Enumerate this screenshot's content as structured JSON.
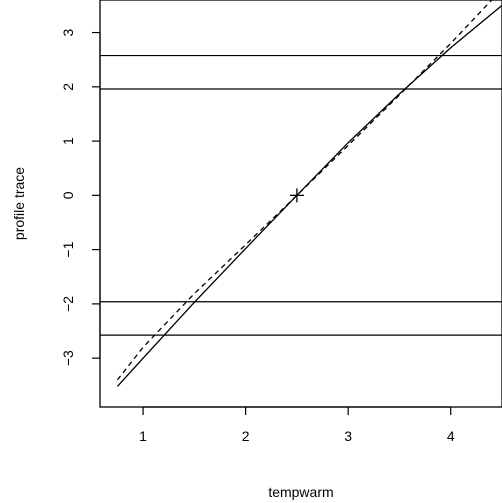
{
  "chart_data": {
    "type": "line",
    "title": "",
    "xlabel": "tempwarm",
    "ylabel": "profile trace",
    "xlim": [
      0.58,
      4.5
    ],
    "ylim": [
      -3.9,
      3.6
    ],
    "xticks": [
      1,
      2,
      3,
      4
    ],
    "xtick_labels": [
      "1",
      "2",
      "3",
      "4"
    ],
    "yticks": [
      -3,
      -2,
      -1,
      0,
      1,
      2,
      3
    ],
    "ytick_labels": [
      "−3",
      "−2",
      "−1",
      "0",
      "1",
      "2",
      "3"
    ],
    "grid": false,
    "legend": "none",
    "series": [
      {
        "style": "solid",
        "x": [
          0.75,
          1.0,
          1.5,
          2.0,
          2.5,
          3.0,
          3.5,
          4.0,
          4.5
        ],
        "y": [
          -3.52,
          -3.0,
          -1.97,
          -0.98,
          0.0,
          0.97,
          1.87,
          2.72,
          3.5
        ]
      },
      {
        "style": "dashed",
        "x": [
          0.75,
          1.0,
          1.5,
          2.0,
          2.5,
          3.0,
          3.5,
          4.0,
          4.4
        ],
        "y": [
          -3.4,
          -2.8,
          -1.81,
          -0.91,
          0.0,
          0.92,
          1.85,
          2.8,
          3.6
        ]
      }
    ],
    "hlines": [
      2.576,
      1.96,
      -1.96,
      -2.576
    ],
    "marker": {
      "x": 2.5,
      "y": 0.0,
      "symbol": "+"
    }
  }
}
